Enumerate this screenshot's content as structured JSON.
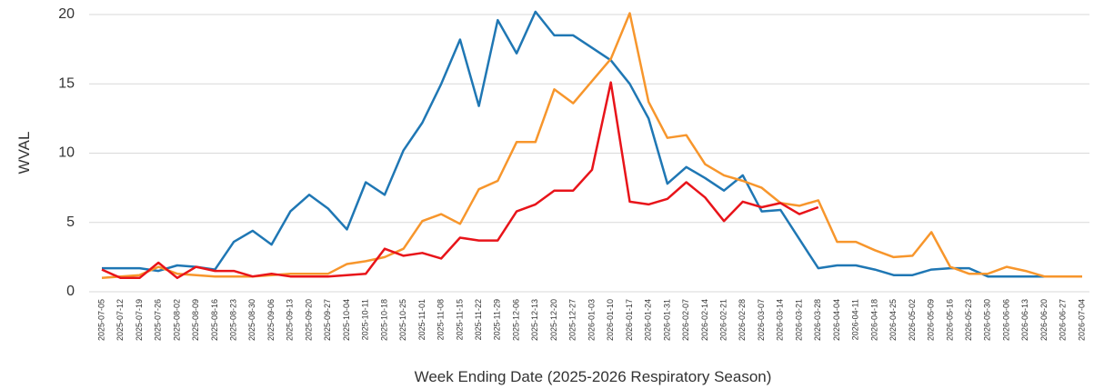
{
  "chart_data": {
    "type": "line",
    "y_label": "WVAL",
    "x_label": "Week Ending Date (2025-2026 Respiratory Season)",
    "categories": [
      "2025-07-05",
      "2025-07-12",
      "2025-07-19",
      "2025-07-26",
      "2025-08-02",
      "2025-08-09",
      "2025-08-16",
      "2025-08-23",
      "2025-08-30",
      "2025-09-06",
      "2025-09-13",
      "2025-09-20",
      "2025-09-27",
      "2025-10-04",
      "2025-10-11",
      "2025-10-18",
      "2025-10-25",
      "2025-11-01",
      "2025-11-08",
      "2025-11-15",
      "2025-11-22",
      "2025-11-29",
      "2025-12-06",
      "2025-12-13",
      "2025-12-20",
      "2025-12-27",
      "2026-01-03",
      "2026-01-10",
      "2026-01-17",
      "2026-01-24",
      "2026-01-31",
      "2026-02-07",
      "2026-02-14",
      "2026-02-21",
      "2026-02-28",
      "2026-03-07",
      "2026-03-14",
      "2026-03-21",
      "2026-03-28",
      "2026-04-04",
      "2026-04-11",
      "2026-04-18",
      "2026-04-25",
      "2026-05-02",
      "2026-05-09",
      "2026-05-16",
      "2026-05-23",
      "2026-05-30",
      "2026-06-06",
      "2026-06-13",
      "2026-06-20",
      "2026-06-27",
      "2026-07-04"
    ],
    "series": [
      {
        "color": "#1f77b4",
        "values": [
          1.7,
          1.7,
          1.7,
          1.5,
          1.9,
          1.8,
          1.6,
          3.6,
          4.4,
          3.4,
          5.8,
          7.0,
          6.0,
          4.5,
          7.9,
          7.0,
          10.2,
          12.2,
          15.0,
          18.2,
          13.4,
          19.6,
          17.2,
          20.2,
          18.5,
          18.5,
          17.6,
          16.7,
          15.0,
          12.5,
          7.8,
          9.0,
          8.2,
          7.3,
          8.4,
          5.8,
          5.9,
          3.8,
          1.7,
          1.9,
          1.9,
          1.6,
          1.2,
          1.2,
          1.6,
          1.7,
          1.7,
          1.1,
          1.1,
          1.1,
          1.1,
          null,
          null
        ]
      },
      {
        "color": "#f7962c",
        "values": [
          1.0,
          1.1,
          1.2,
          1.8,
          1.3,
          1.2,
          1.1,
          1.1,
          1.1,
          1.2,
          1.3,
          1.3,
          1.3,
          2.0,
          2.2,
          2.5,
          3.1,
          5.1,
          5.6,
          4.9,
          7.4,
          8.0,
          10.8,
          10.8,
          14.6,
          13.6,
          15.2,
          16.8,
          20.1,
          13.7,
          11.1,
          11.3,
          9.2,
          8.4,
          8.0,
          7.5,
          6.4,
          6.2,
          6.6,
          3.6,
          3.6,
          3.0,
          2.5,
          2.6,
          4.3,
          1.8,
          1.3,
          1.3,
          1.8,
          1.5,
          1.1,
          1.1,
          1.1
        ]
      },
      {
        "color": "#e8141a",
        "values": [
          1.6,
          1.0,
          1.0,
          2.1,
          1.0,
          1.8,
          1.5,
          1.5,
          1.1,
          1.3,
          1.1,
          1.1,
          1.1,
          1.2,
          1.3,
          3.1,
          2.6,
          2.8,
          2.4,
          3.9,
          3.7,
          3.7,
          5.8,
          6.3,
          7.3,
          7.3,
          8.8,
          15.1,
          6.5,
          6.3,
          6.7,
          7.9,
          6.8,
          5.1,
          6.5,
          6.1,
          6.4,
          5.6,
          6.1,
          null,
          null,
          null,
          null,
          null,
          null,
          null,
          null,
          null,
          null,
          null,
          null,
          null,
          null
        ]
      }
    ],
    "ylim": [
      0,
      20
    ],
    "yticks": [
      0,
      5,
      10,
      15,
      20
    ],
    "grid": true
  }
}
